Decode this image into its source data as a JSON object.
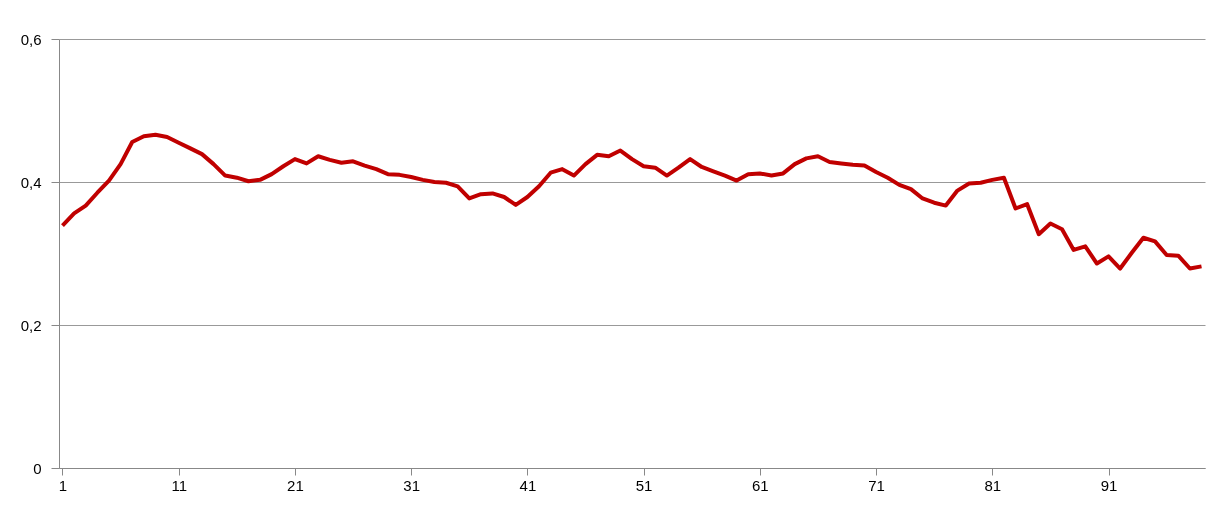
{
  "chart_data": {
    "type": "line",
    "categories": [
      "1",
      null,
      null,
      null,
      null,
      null,
      null,
      null,
      null,
      null,
      "11",
      null,
      null,
      null,
      null,
      null,
      null,
      null,
      null,
      null,
      "21",
      null,
      null,
      null,
      null,
      null,
      null,
      null,
      null,
      null,
      "31",
      null,
      null,
      null,
      null,
      null,
      null,
      null,
      null,
      null,
      "41",
      null,
      null,
      null,
      null,
      null,
      null,
      null,
      null,
      null,
      "51",
      null,
      null,
      null,
      null,
      null,
      null,
      null,
      null,
      null,
      "61",
      null,
      null,
      null,
      null,
      null,
      null,
      null,
      null,
      null,
      "71",
      null,
      null,
      null,
      null,
      null,
      null,
      null,
      null,
      null,
      "81",
      null,
      null,
      null,
      null,
      null,
      null,
      null,
      null,
      null,
      "91",
      null,
      null,
      null,
      null,
      null,
      null,
      null,
      null
    ],
    "series": [
      {
        "color": "#c00000",
        "values": [
          0.339,
          0.356,
          0.367,
          0.385,
          0.402,
          0.425,
          0.456,
          0.464,
          0.466,
          0.463,
          0.455,
          0.447,
          0.439,
          0.425,
          0.409,
          0.406,
          0.401,
          0.403,
          0.411,
          0.422,
          0.432,
          0.426,
          0.436,
          0.431,
          0.427,
          0.429,
          0.423,
          0.418,
          0.411,
          0.41,
          0.407,
          0.403,
          0.4,
          0.399,
          0.394,
          0.377,
          0.383,
          0.384,
          0.379,
          0.368,
          0.379,
          0.394,
          0.413,
          0.418,
          0.409,
          0.425,
          0.438,
          0.436,
          0.444,
          0.432,
          0.422,
          0.42,
          0.409,
          0.42,
          0.432,
          0.421,
          0.415,
          0.409,
          0.402,
          0.411,
          0.412,
          0.409,
          0.412,
          0.425,
          0.433,
          0.436,
          0.428,
          0.426,
          0.424,
          0.423,
          0.414,
          0.406,
          0.396,
          0.39,
          0.377,
          0.371,
          0.367,
          0.388,
          0.398,
          0.399,
          0.403,
          0.406,
          0.363,
          0.369,
          0.327,
          0.342,
          0.334,
          0.305,
          0.31,
          0.286,
          0.296,
          0.279,
          0.301,
          0.322,
          0.317,
          0.298,
          0.297,
          0.279,
          0.282
        ]
      }
    ],
    "ylim": [
      0,
      0.6
    ],
    "yticks": [
      0,
      {
        "value": 0.2,
        "label": "0,2"
      },
      {
        "value": 0.4,
        "label": "0,4"
      },
      {
        "value": 0.6,
        "label": "0,6"
      }
    ],
    "grid": "y",
    "marker": "none",
    "line_style": "solid",
    "legend": false
  }
}
